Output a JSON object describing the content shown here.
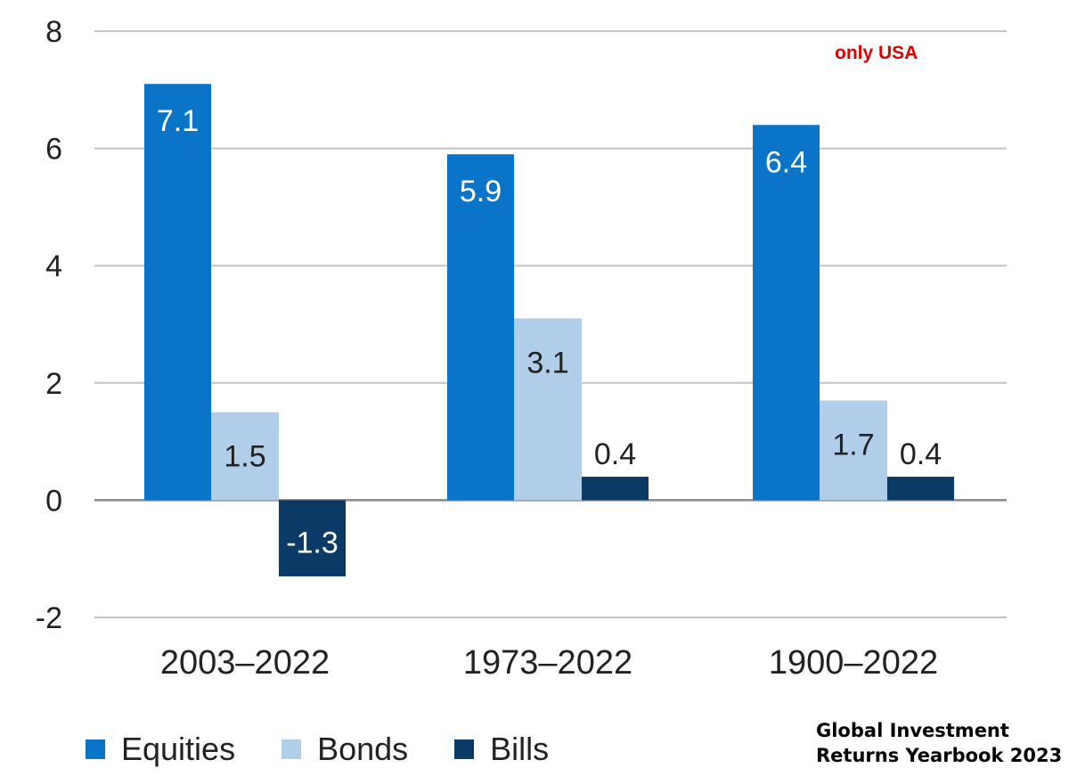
{
  "chart_data": {
    "type": "bar",
    "categories": [
      "2003–2022",
      "1973–2022",
      "1900–2022"
    ],
    "series": [
      {
        "name": "Equities",
        "values": [
          7.1,
          5.9,
          6.4
        ],
        "labels": [
          "7.1",
          "5.9",
          "6.4"
        ],
        "color": "#0a74c9",
        "label_color": "#ffffff"
      },
      {
        "name": "Bonds",
        "values": [
          1.5,
          3.1,
          1.7
        ],
        "labels": [
          "1.5",
          "3.1",
          "1.7"
        ],
        "color": "#b0cde9",
        "label_color": "#222222"
      },
      {
        "name": "Bills",
        "values": [
          -1.3,
          0.4,
          0.4
        ],
        "labels": [
          "-1.3",
          "0.4",
          "0.4"
        ],
        "color": "#0c3a66",
        "label_color": "#222222"
      }
    ],
    "y_ticks": [
      "8",
      "6",
      "4",
      "2",
      "0",
      "-2"
    ],
    "ylim": [
      -2,
      8
    ],
    "grid": true,
    "legend_position": "bottom-left",
    "annotation": "only USA",
    "annotation_color": "#e00000",
    "source_lines": [
      "Global Investment",
      "Returns Yearbook 2023"
    ],
    "gridline_color": "#c4c4c4",
    "zero_line_color": "#8a8a8a"
  }
}
